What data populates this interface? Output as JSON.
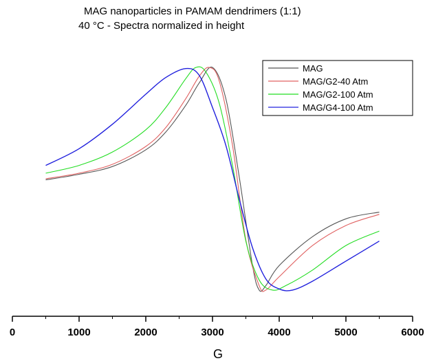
{
  "chart_data": {
    "type": "line",
    "title": "MAG  nanoparticles in PAMAM dendrimers (1:1)",
    "subtitle": "40 °C - Spectra normalized in height",
    "xlabel": "G",
    "ylabel": "",
    "xlim": [
      0,
      6000
    ],
    "ylim": [
      -1.05,
      1.05
    ],
    "x_ticks": [
      "0",
      "1000",
      "2000",
      "3000",
      "4000",
      "5000",
      "6000"
    ],
    "y_ticks_visible": false,
    "grid": false,
    "legend_position": "top-right",
    "series": [
      {
        "name": "MAG",
        "color": "#555555",
        "x": [
          500,
          1000,
          1500,
          2000,
          2300,
          2600,
          2800,
          3000,
          3200,
          3400,
          3600,
          3700,
          3800,
          4000,
          4500,
          5000,
          5500
        ],
        "y": [
          -0.01,
          0.04,
          0.11,
          0.26,
          0.42,
          0.66,
          0.86,
          1.0,
          0.72,
          0.02,
          -0.78,
          -1.0,
          -0.96,
          -0.78,
          -0.52,
          -0.36,
          -0.3
        ]
      },
      {
        "name": "MAG/G2-40 Atm",
        "color": "#e06060",
        "x": [
          500,
          1000,
          1500,
          2000,
          2300,
          2600,
          2800,
          2950,
          3100,
          3300,
          3500,
          3700,
          3800,
          4000,
          4500,
          5000,
          5500
        ],
        "y": [
          0.0,
          0.05,
          0.13,
          0.29,
          0.46,
          0.72,
          0.92,
          1.0,
          0.88,
          0.3,
          -0.55,
          -0.96,
          -1.0,
          -0.88,
          -0.6,
          -0.42,
          -0.32
        ]
      },
      {
        "name": "MAG/G2-100 Atm",
        "color": "#22dd22",
        "x": [
          500,
          1000,
          1500,
          2000,
          2300,
          2600,
          2750,
          2900,
          3100,
          3300,
          3500,
          3700,
          3900,
          4100,
          4500,
          5000,
          5500
        ],
        "y": [
          0.05,
          0.12,
          0.24,
          0.44,
          0.64,
          0.9,
          1.0,
          0.96,
          0.68,
          0.12,
          -0.56,
          -0.91,
          -1.0,
          -0.96,
          -0.82,
          -0.6,
          -0.47
        ]
      },
      {
        "name": "MAG/G4-100 Atm",
        "color": "#2020dd",
        "x": [
          500,
          1000,
          1500,
          2000,
          2300,
          2600,
          2800,
          3000,
          3200,
          3400,
          3600,
          3800,
          4000,
          4200,
          4500,
          5000,
          5500
        ],
        "y": [
          0.12,
          0.27,
          0.49,
          0.76,
          0.91,
          0.99,
          0.93,
          0.64,
          0.3,
          -0.18,
          -0.62,
          -0.9,
          -0.99,
          -1.0,
          -0.92,
          -0.74,
          -0.56
        ]
      }
    ]
  }
}
